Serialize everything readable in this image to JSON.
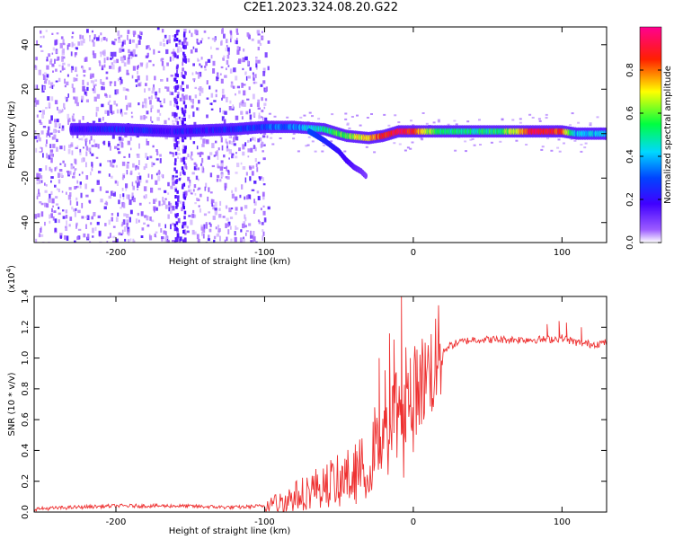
{
  "title": "C2E1.2023.324.08.20.G22",
  "chart_data": [
    {
      "type": "heatmap",
      "title": "",
      "xlabel": "Height of straight line (km)",
      "ylabel": "Frequency (Hz)",
      "xlim": [
        -255,
        130
      ],
      "ylim": [
        -49,
        48
      ],
      "xticks": [
        -200,
        -100,
        0,
        100
      ],
      "yticks": [
        -40,
        -20,
        0,
        20,
        40
      ],
      "colorbar": {
        "label": "Normalized spectral amplitude",
        "range": [
          0,
          1
        ],
        "ticks": [
          0.0,
          0.2,
          0.4,
          0.6,
          0.8
        ],
        "colormap": [
          "#ffffff",
          "#7b00ff",
          "#0000ff",
          "#00e5ff",
          "#00ff00",
          "#ffff00",
          "#ff0000",
          "#ff0080"
        ]
      },
      "ridge": {
        "x": [
          -230,
          -200,
          -160,
          -120,
          -100,
          -80,
          -60,
          -45,
          -30,
          -20,
          -10,
          0,
          20,
          40,
          60,
          80,
          100,
          110,
          130
        ],
        "y": [
          2,
          2,
          1,
          2,
          3,
          3,
          2,
          -1,
          -2,
          -1,
          1,
          1,
          1,
          1,
          1,
          1,
          1,
          0,
          0
        ],
        "amplitude": [
          0.2,
          0.25,
          0.2,
          0.25,
          0.3,
          0.35,
          0.5,
          0.6,
          0.75,
          0.85,
          0.9,
          0.85,
          0.5,
          0.5,
          0.55,
          0.9,
          0.85,
          0.4,
          0.4
        ]
      },
      "branch": {
        "x": [
          -70,
          -60,
          -50,
          -45,
          -40,
          -35,
          -32
        ],
        "y": [
          1,
          -3,
          -8,
          -12,
          -15,
          -17,
          -19
        ],
        "amplitude": [
          0.3,
          0.25,
          0.2,
          0.18,
          0.15,
          0.12,
          0.1
        ]
      },
      "noise_region": {
        "x_range": [
          -255,
          -98
        ],
        "y_range": [
          -49,
          48
        ],
        "amplitude": 0.1
      }
    },
    {
      "type": "line",
      "title": "",
      "xlabel": "Height of straight line (km)",
      "ylabel": "SNR (10 * v/v)",
      "multiplier": "(x10",
      "multiplier_exp": "4",
      "multiplier_close": ")",
      "xlim": [
        -255,
        130
      ],
      "ylim": [
        0,
        1.4
      ],
      "xticks": [
        -200,
        -100,
        0,
        100
      ],
      "yticks": [
        0.0,
        0.2,
        0.4,
        0.6,
        0.8,
        1.0,
        1.2,
        1.4
      ],
      "color": "#ee3030",
      "series": [
        {
          "x": [
            -255,
            -230,
            -200,
            -160,
            -120,
            -100,
            -90,
            -80,
            -70,
            -60,
            -50,
            -40,
            -35,
            -30,
            -25,
            -20,
            -15,
            -10,
            -5,
            0,
            5,
            10,
            15,
            20,
            25,
            30,
            40,
            60,
            80,
            90,
            100,
            110,
            120,
            130
          ],
          "y": [
            0.02,
            0.03,
            0.04,
            0.04,
            0.03,
            0.04,
            0.06,
            0.1,
            0.14,
            0.18,
            0.2,
            0.24,
            0.28,
            0.32,
            0.4,
            0.55,
            0.62,
            0.72,
            0.7,
            0.78,
            0.84,
            0.9,
            0.98,
            1.05,
            1.08,
            1.1,
            1.12,
            1.12,
            1.12,
            1.12,
            1.13,
            1.1,
            1.09,
            1.1
          ],
          "spikes": [
            {
              "x": -45,
              "y": 0.34
            },
            {
              "x": -38,
              "y": 0.38
            },
            {
              "x": -26,
              "y": 0.68
            },
            {
              "x": -23,
              "y": 1.0
            },
            {
              "x": -19,
              "y": 0.92
            },
            {
              "x": -16,
              "y": 1.16
            },
            {
              "x": -13,
              "y": 1.12
            },
            {
              "x": -8,
              "y": 1.4
            },
            {
              "x": -5,
              "y": 1.07
            },
            {
              "x": -2,
              "y": 1.0
            },
            {
              "x": 90,
              "y": 1.22
            },
            {
              "x": 98,
              "y": 1.24
            },
            {
              "x": 103,
              "y": 1.23
            },
            {
              "x": 113,
              "y": 1.2
            }
          ]
        }
      ]
    }
  ]
}
